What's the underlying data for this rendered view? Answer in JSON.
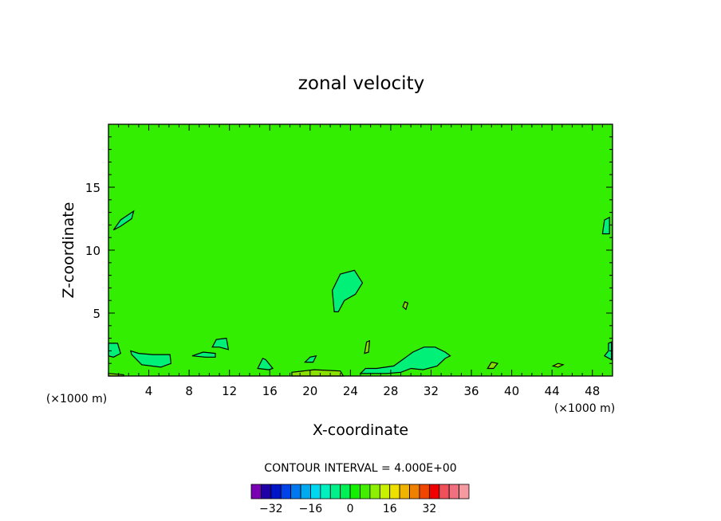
{
  "chart_data": {
    "type": "contour",
    "title": "zonal velocity",
    "xlabel": "X-coordinate",
    "ylabel": "Z-coordinate",
    "x_unit_label": "(×1000 m)",
    "z_unit_label": "(×1000 m)",
    "xlim": [
      0,
      50
    ],
    "ylim": [
      0,
      20
    ],
    "x_ticks": [
      {
        "value": 4,
        "label": "4"
      },
      {
        "value": 8,
        "label": "8"
      },
      {
        "value": 12,
        "label": "12"
      },
      {
        "value": 16,
        "label": "16"
      },
      {
        "value": 20,
        "label": "20"
      },
      {
        "value": 24,
        "label": "24"
      },
      {
        "value": 28,
        "label": "28"
      },
      {
        "value": 32,
        "label": "32"
      },
      {
        "value": 36,
        "label": "36"
      },
      {
        "value": 40,
        "label": "40"
      },
      {
        "value": 44,
        "label": "44"
      },
      {
        "value": 48,
        "label": "48"
      }
    ],
    "y_ticks": [
      {
        "value": 5,
        "label": "5"
      },
      {
        "value": 10,
        "label": "10"
      },
      {
        "value": 15,
        "label": "15"
      }
    ],
    "background_value_range": [
      0,
      4
    ],
    "contour_interval_text": "CONTOUR INTERVAL = 4.000E+00",
    "contour_regions": [
      {
        "band": [
          -4,
          0
        ],
        "points": [
          [
            0.5,
            11.6
          ],
          [
            1.2,
            12.4
          ],
          [
            2.5,
            13.1
          ],
          [
            2.3,
            12.5
          ],
          [
            1.2,
            11.9
          ],
          [
            0.5,
            11.6
          ]
        ]
      },
      {
        "band": [
          -4,
          0
        ],
        "points": [
          [
            22.4,
            5.1
          ],
          [
            22.2,
            6.8
          ],
          [
            23.0,
            8.1
          ],
          [
            24.4,
            8.4
          ],
          [
            25.2,
            7.4
          ],
          [
            24.5,
            6.5
          ],
          [
            23.4,
            6.0
          ],
          [
            22.8,
            5.1
          ],
          [
            22.4,
            5.1
          ]
        ]
      },
      {
        "band": [
          -4,
          0
        ],
        "points": [
          [
            49.7,
            11.3
          ],
          [
            49.7,
            12.6
          ],
          [
            49.2,
            12.4
          ],
          [
            49.0,
            11.3
          ],
          [
            49.7,
            11.3
          ]
        ]
      },
      {
        "band": [
          -4,
          0
        ],
        "points": [
          [
            0,
            2.6
          ],
          [
            0.9,
            2.6
          ],
          [
            1.2,
            1.8
          ],
          [
            0.5,
            1.5
          ],
          [
            0,
            1.6
          ],
          [
            0,
            2.6
          ]
        ]
      },
      {
        "band": [
          -4,
          0
        ],
        "points": [
          [
            2.3,
            1.7
          ],
          [
            2.2,
            2.0
          ],
          [
            3.0,
            1.8
          ],
          [
            4.4,
            1.7
          ],
          [
            6.1,
            1.7
          ],
          [
            6.2,
            1.0
          ],
          [
            5.2,
            0.7
          ],
          [
            3.3,
            0.9
          ],
          [
            2.3,
            1.7
          ]
        ]
      },
      {
        "band": [
          -4,
          0
        ],
        "points": [
          [
            8.3,
            1.6
          ],
          [
            9.4,
            1.9
          ],
          [
            10.6,
            1.8
          ],
          [
            10.6,
            1.5
          ],
          [
            9.6,
            1.5
          ],
          [
            8.3,
            1.6
          ]
        ]
      },
      {
        "band": [
          -4,
          0
        ],
        "points": [
          [
            10.3,
            2.3
          ],
          [
            10.7,
            2.9
          ],
          [
            11.7,
            3.0
          ],
          [
            11.9,
            2.1
          ],
          [
            11.0,
            2.3
          ],
          [
            10.3,
            2.3
          ]
        ]
      },
      {
        "band": [
          -4,
          0
        ],
        "points": [
          [
            14.8,
            0.6
          ],
          [
            15.3,
            1.4
          ],
          [
            15.6,
            1.3
          ],
          [
            16.3,
            0.6
          ],
          [
            15.9,
            0.5
          ],
          [
            14.8,
            0.6
          ]
        ]
      },
      {
        "band": [
          -4,
          0
        ],
        "points": [
          [
            19.5,
            1.1
          ],
          [
            20.0,
            1.5
          ],
          [
            20.6,
            1.6
          ],
          [
            20.3,
            1.1
          ],
          [
            19.5,
            1.1
          ]
        ]
      },
      {
        "band": [
          -4,
          0
        ],
        "points": [
          [
            25.0,
            0.2
          ],
          [
            25.5,
            0.6
          ],
          [
            26.6,
            0.6
          ],
          [
            28.3,
            0.8
          ],
          [
            29.0,
            1.2
          ],
          [
            30.2,
            1.9
          ],
          [
            31.3,
            2.3
          ],
          [
            32.4,
            2.3
          ],
          [
            33.4,
            1.9
          ],
          [
            33.9,
            1.6
          ],
          [
            33.4,
            1.4
          ],
          [
            32.6,
            0.8
          ],
          [
            31.2,
            0.5
          ],
          [
            30.0,
            0.6
          ],
          [
            29.0,
            0.3
          ],
          [
            27.6,
            0.2
          ],
          [
            25.0,
            0.2
          ]
        ]
      },
      {
        "band": [
          -4,
          0
        ],
        "points": [
          [
            49.6,
            2.0
          ],
          [
            49.6,
            2.6
          ],
          [
            49.9,
            2.7
          ],
          [
            49.9,
            1.3
          ],
          [
            49.2,
            1.6
          ],
          [
            49.6,
            2.0
          ]
        ]
      },
      {
        "band": [
          4,
          8
        ],
        "points": [
          [
            25.4,
            1.8
          ],
          [
            25.6,
            2.7
          ],
          [
            25.9,
            2.8
          ],
          [
            25.8,
            1.9
          ],
          [
            25.4,
            1.8
          ]
        ]
      },
      {
        "band": [
          4,
          8
        ],
        "points": [
          [
            29.2,
            5.5
          ],
          [
            29.4,
            5.9
          ],
          [
            29.7,
            5.8
          ],
          [
            29.5,
            5.3
          ],
          [
            29.2,
            5.5
          ]
        ]
      },
      {
        "band": [
          4,
          8
        ],
        "points": [
          [
            37.6,
            0.6
          ],
          [
            38.0,
            1.1
          ],
          [
            38.6,
            1.0
          ],
          [
            38.2,
            0.6
          ],
          [
            37.6,
            0.6
          ]
        ]
      },
      {
        "band": [
          4,
          8
        ],
        "points": [
          [
            44.1,
            0.8
          ],
          [
            44.6,
            1.0
          ],
          [
            45.1,
            0.9
          ],
          [
            44.6,
            0.7
          ],
          [
            44.1,
            0.8
          ]
        ]
      },
      {
        "band": [
          4,
          8
        ],
        "points": [
          [
            0,
            0.2
          ],
          [
            1.5,
            0.1
          ],
          [
            1.5,
            0
          ],
          [
            0,
            0
          ],
          [
            0,
            0.2
          ]
        ]
      },
      {
        "band": [
          4,
          8
        ],
        "points": [
          [
            18.2,
            0.3
          ],
          [
            20.4,
            0.5
          ],
          [
            23.0,
            0.4
          ],
          [
            23.3,
            0
          ],
          [
            18.2,
            0
          ],
          [
            18.2,
            0.3
          ]
        ]
      }
    ],
    "colorbar": {
      "colors": [
        "#7a00b4",
        "#1f00a6",
        "#0015c8",
        "#0043e8",
        "#0078f0",
        "#00aaf0",
        "#00d8f0",
        "#00f0c0",
        "#00f08a",
        "#00f055",
        "#15f000",
        "#44ee00",
        "#8cf000",
        "#c8f000",
        "#f0e000",
        "#f0b400",
        "#f08000",
        "#f04600",
        "#f00000",
        "#f0505a",
        "#f07080",
        "#f49aa0"
      ],
      "tick_labels": [
        {
          "value": -32,
          "label": "−32"
        },
        {
          "value": -16,
          "label": "−16"
        },
        {
          "value": 0,
          "label": "0"
        },
        {
          "value": 16,
          "label": "16"
        },
        {
          "value": 32,
          "label": "32"
        }
      ],
      "range": [
        -40,
        48
      ]
    }
  }
}
